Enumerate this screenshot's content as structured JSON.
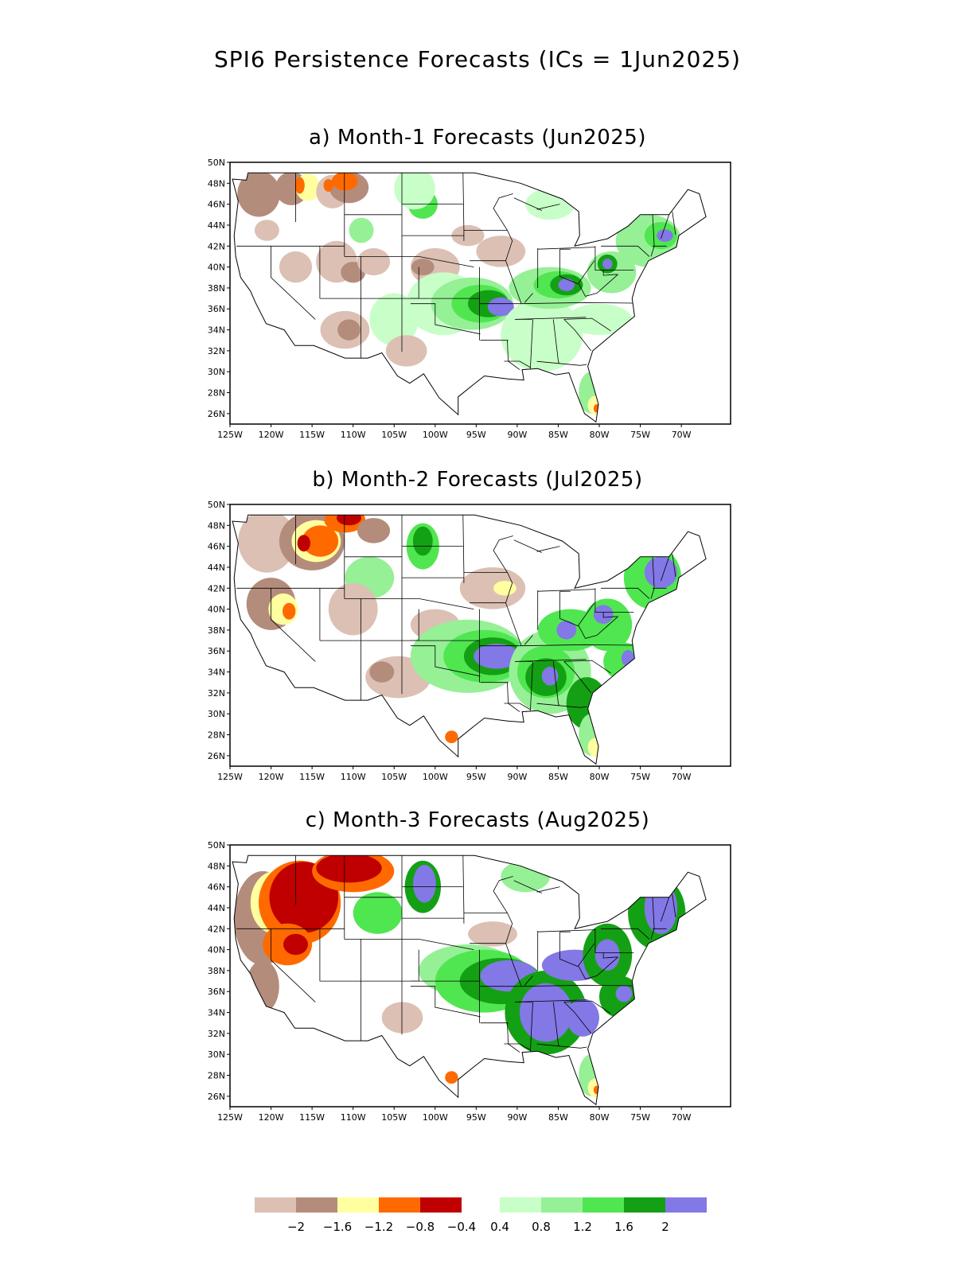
{
  "title": "SPI6 Persistence Forecasts (ICs = 1Jun2025)",
  "map": {
    "lon_range": [
      -125,
      -64
    ],
    "lat_range": [
      25,
      50
    ],
    "lat_ticks": [
      {
        "value": 26,
        "label": "26N"
      },
      {
        "value": 28,
        "label": "28N"
      },
      {
        "value": 30,
        "label": "30N"
      },
      {
        "value": 32,
        "label": "32N"
      },
      {
        "value": 34,
        "label": "34N"
      },
      {
        "value": 36,
        "label": "36N"
      },
      {
        "value": 38,
        "label": "38N"
      },
      {
        "value": 40,
        "label": "40N"
      },
      {
        "value": 42,
        "label": "42N"
      },
      {
        "value": 44,
        "label": "44N"
      },
      {
        "value": 46,
        "label": "46N"
      },
      {
        "value": 48,
        "label": "48N"
      },
      {
        "value": 50,
        "label": "50N"
      }
    ],
    "lon_ticks": [
      {
        "value": -125,
        "label": "125W"
      },
      {
        "value": -120,
        "label": "120W"
      },
      {
        "value": -115,
        "label": "115W"
      },
      {
        "value": -110,
        "label": "110W"
      },
      {
        "value": -105,
        "label": "105W"
      },
      {
        "value": -100,
        "label": "100W"
      },
      {
        "value": -95,
        "label": "95W"
      },
      {
        "value": -90,
        "label": "90W"
      },
      {
        "value": -85,
        "label": "85W"
      },
      {
        "value": -80,
        "label": "80W"
      },
      {
        "value": -75,
        "label": "75W"
      },
      {
        "value": -70,
        "label": "70W"
      }
    ]
  },
  "colors": {
    "le_m2": "#c00000",
    "m2_m16": "#ff6a00",
    "m16_m12": "#ffffa0",
    "m12_m08": "#b48c7c",
    "m08_m04": "#dcc0b4",
    "p04_p08": "#c8ffc8",
    "p08_p12": "#96f096",
    "p12_p16": "#50e650",
    "p16_p2": "#14a014",
    "ge_p2": "#8278e6"
  },
  "panels": [
    {
      "title": "a) Month-1 Forecasts (Jun2025)",
      "blobs": [
        {
          "lon": -121.5,
          "lat": 47,
          "rx": 2.6,
          "ry": 2.2,
          "level": "m12_m08"
        },
        {
          "lon": -117.5,
          "lat": 47.5,
          "rx": 2,
          "ry": 1.6,
          "level": "m12_m08"
        },
        {
          "lon": -115.5,
          "lat": 47.6,
          "rx": 1.5,
          "ry": 1.3,
          "level": "m16_m12"
        },
        {
          "lon": -112.5,
          "lat": 47.2,
          "rx": 2,
          "ry": 1.6,
          "level": "m08_m04"
        },
        {
          "lon": -110.5,
          "lat": 47.6,
          "rx": 2.4,
          "ry": 1.5,
          "level": "m12_m08"
        },
        {
          "lon": -111,
          "lat": 48.2,
          "rx": 1.6,
          "ry": 0.9,
          "level": "m2_m16"
        },
        {
          "lon": -113,
          "lat": 47.8,
          "rx": 0.6,
          "ry": 0.6,
          "level": "m2_m16"
        },
        {
          "lon": -116.5,
          "lat": 47.8,
          "rx": 0.6,
          "ry": 0.8,
          "level": "m2_m16"
        },
        {
          "lon": -109,
          "lat": 43.5,
          "rx": 1.5,
          "ry": 1.2,
          "level": "p08_p12"
        },
        {
          "lon": -101.5,
          "lat": 46,
          "rx": 1.8,
          "ry": 1.4,
          "level": "p12_p16"
        },
        {
          "lon": -102.5,
          "lat": 47.5,
          "rx": 2.5,
          "ry": 2,
          "level": "p04_p08"
        },
        {
          "lon": -117,
          "lat": 40,
          "rx": 2,
          "ry": 1.5,
          "level": "m08_m04"
        },
        {
          "lon": -112,
          "lat": 40.5,
          "rx": 2.5,
          "ry": 2,
          "level": "m08_m04"
        },
        {
          "lon": -110,
          "lat": 39.5,
          "rx": 1.5,
          "ry": 1,
          "level": "m12_m08"
        },
        {
          "lon": -107.5,
          "lat": 40.5,
          "rx": 2,
          "ry": 1.3,
          "level": "m08_m04"
        },
        {
          "lon": -100,
          "lat": 40,
          "rx": 3,
          "ry": 1.8,
          "level": "m08_m04"
        },
        {
          "lon": -101.5,
          "lat": 40,
          "rx": 1.4,
          "ry": 0.8,
          "level": "m12_m08"
        },
        {
          "lon": -92,
          "lat": 41.5,
          "rx": 3,
          "ry": 1.5,
          "level": "m08_m04"
        },
        {
          "lon": -96,
          "lat": 43,
          "rx": 2,
          "ry": 1,
          "level": "m08_m04"
        },
        {
          "lon": -111,
          "lat": 34,
          "rx": 3,
          "ry": 1.8,
          "level": "m08_m04"
        },
        {
          "lon": -110.5,
          "lat": 34,
          "rx": 1.4,
          "ry": 1,
          "level": "m12_m08"
        },
        {
          "lon": -105,
          "lat": 35,
          "rx": 3,
          "ry": 2.5,
          "level": "p04_p08"
        },
        {
          "lon": -103.5,
          "lat": 32,
          "rx": 2.5,
          "ry": 1.5,
          "level": "m08_m04"
        },
        {
          "lon": -99,
          "lat": 36.5,
          "rx": 4.5,
          "ry": 3,
          "level": "p04_p08"
        },
        {
          "lon": -95.5,
          "lat": 36.5,
          "rx": 5,
          "ry": 2.5,
          "level": "p08_p12"
        },
        {
          "lon": -94.5,
          "lat": 36.5,
          "rx": 3.5,
          "ry": 1.8,
          "level": "p12_p16"
        },
        {
          "lon": -93.5,
          "lat": 36.5,
          "rx": 2.5,
          "ry": 1.3,
          "level": "p16_p2"
        },
        {
          "lon": -92,
          "lat": 36.2,
          "rx": 1.6,
          "ry": 0.9,
          "level": "ge_p2"
        },
        {
          "lon": -87,
          "lat": 33.5,
          "rx": 5,
          "ry": 3.5,
          "level": "p04_p08"
        },
        {
          "lon": -86,
          "lat": 38,
          "rx": 5,
          "ry": 2,
          "level": "p08_p12"
        },
        {
          "lon": -85,
          "lat": 38.3,
          "rx": 3,
          "ry": 1.3,
          "level": "p12_p16"
        },
        {
          "lon": -84,
          "lat": 38.3,
          "rx": 2,
          "ry": 1,
          "level": "p16_p2"
        },
        {
          "lon": -84,
          "lat": 38.3,
          "rx": 1,
          "ry": 0.6,
          "level": "ge_p2"
        },
        {
          "lon": -78.5,
          "lat": 39.5,
          "rx": 3,
          "ry": 2,
          "level": "p08_p12"
        },
        {
          "lon": -79,
          "lat": 40.3,
          "rx": 1.2,
          "ry": 0.9,
          "level": "p16_p2"
        },
        {
          "lon": -79,
          "lat": 40.3,
          "rx": 0.6,
          "ry": 0.5,
          "level": "ge_p2"
        },
        {
          "lon": -74,
          "lat": 42.5,
          "rx": 4,
          "ry": 2.5,
          "level": "p08_p12"
        },
        {
          "lon": -72.5,
          "lat": 43,
          "rx": 2,
          "ry": 1.3,
          "level": "p12_p16"
        },
        {
          "lon": -72,
          "lat": 43,
          "rx": 1,
          "ry": 0.6,
          "level": "ge_p2"
        },
        {
          "lon": -81,
          "lat": 28,
          "rx": 1.5,
          "ry": 2,
          "level": "p08_p12"
        },
        {
          "lon": -80.5,
          "lat": 26.8,
          "rx": 0.9,
          "ry": 0.9,
          "level": "m16_m12"
        },
        {
          "lon": -80.3,
          "lat": 26.5,
          "rx": 0.4,
          "ry": 0.4,
          "level": "m2_m16"
        },
        {
          "lon": -86,
          "lat": 46,
          "rx": 3,
          "ry": 1.5,
          "level": "p04_p08"
        },
        {
          "lon": -80,
          "lat": 35,
          "rx": 4,
          "ry": 1.5,
          "level": "p04_p08"
        },
        {
          "lon": -120.5,
          "lat": 43.5,
          "rx": 1.5,
          "ry": 1,
          "level": "m08_m04"
        }
      ]
    },
    {
      "title": "b) Month-2 Forecasts (Jul2025)",
      "blobs": [
        {
          "lon": -120.5,
          "lat": 46.5,
          "rx": 3.5,
          "ry": 3,
          "level": "m08_m04"
        },
        {
          "lon": -120,
          "lat": 40.5,
          "rx": 3,
          "ry": 2.5,
          "level": "m12_m08"
        },
        {
          "lon": -118.5,
          "lat": 40,
          "rx": 1.8,
          "ry": 1.5,
          "level": "m16_m12"
        },
        {
          "lon": -117.8,
          "lat": 39.8,
          "rx": 0.8,
          "ry": 0.8,
          "level": "m2_m16"
        },
        {
          "lon": -115,
          "lat": 46.5,
          "rx": 4,
          "ry": 2.8,
          "level": "m12_m08"
        },
        {
          "lon": -114.5,
          "lat": 46.5,
          "rx": 3,
          "ry": 2,
          "level": "m16_m12"
        },
        {
          "lon": -114,
          "lat": 46.5,
          "rx": 2.2,
          "ry": 1.5,
          "level": "m2_m16"
        },
        {
          "lon": -116,
          "lat": 46.3,
          "rx": 0.8,
          "ry": 0.8,
          "level": "le_m2"
        },
        {
          "lon": -111,
          "lat": 48.5,
          "rx": 2.5,
          "ry": 1.2,
          "level": "m2_m16"
        },
        {
          "lon": -110.5,
          "lat": 48.7,
          "rx": 1.5,
          "ry": 0.7,
          "level": "le_m2"
        },
        {
          "lon": -107.5,
          "lat": 47.5,
          "rx": 2,
          "ry": 1.2,
          "level": "m12_m08"
        },
        {
          "lon": -101.5,
          "lat": 46,
          "rx": 2,
          "ry": 2.2,
          "level": "p12_p16"
        },
        {
          "lon": -101.5,
          "lat": 46.5,
          "rx": 1.2,
          "ry": 1.4,
          "level": "p16_p2"
        },
        {
          "lon": -108,
          "lat": 43,
          "rx": 3,
          "ry": 2,
          "level": "p08_p12"
        },
        {
          "lon": -110,
          "lat": 40,
          "rx": 3,
          "ry": 2.5,
          "level": "m08_m04"
        },
        {
          "lon": -104.5,
          "lat": 33.5,
          "rx": 4,
          "ry": 2,
          "level": "m08_m04"
        },
        {
          "lon": -106.5,
          "lat": 34,
          "rx": 1.5,
          "ry": 1,
          "level": "m12_m08"
        },
        {
          "lon": -100,
          "lat": 38.5,
          "rx": 3,
          "ry": 1.5,
          "level": "m08_m04"
        },
        {
          "lon": -93,
          "lat": 42,
          "rx": 4,
          "ry": 2,
          "level": "m08_m04"
        },
        {
          "lon": -91.5,
          "lat": 42,
          "rx": 1.4,
          "ry": 0.7,
          "level": "m16_m12"
        },
        {
          "lon": -96,
          "lat": 35.5,
          "rx": 7,
          "ry": 3.5,
          "level": "p08_p12"
        },
        {
          "lon": -94,
          "lat": 35.5,
          "rx": 5,
          "ry": 2.5,
          "level": "p12_p16"
        },
        {
          "lon": -93,
          "lat": 35.5,
          "rx": 3.5,
          "ry": 1.8,
          "level": "p16_p2"
        },
        {
          "lon": -92.5,
          "lat": 35.5,
          "rx": 2.8,
          "ry": 1.2,
          "level": "ge_p2"
        },
        {
          "lon": -86,
          "lat": 34,
          "rx": 5,
          "ry": 4,
          "level": "p08_p12"
        },
        {
          "lon": -86.5,
          "lat": 34,
          "rx": 3.5,
          "ry": 2.5,
          "level": "p12_p16"
        },
        {
          "lon": -86.5,
          "lat": 33.5,
          "rx": 2.5,
          "ry": 1.8,
          "level": "p16_p2"
        },
        {
          "lon": -86,
          "lat": 33.6,
          "rx": 1,
          "ry": 0.9,
          "level": "ge_p2"
        },
        {
          "lon": -83.5,
          "lat": 38,
          "rx": 4,
          "ry": 2,
          "level": "p12_p16"
        },
        {
          "lon": -84,
          "lat": 38,
          "rx": 1.2,
          "ry": 0.9,
          "level": "ge_p2"
        },
        {
          "lon": -79,
          "lat": 38.5,
          "rx": 3,
          "ry": 2.5,
          "level": "p12_p16"
        },
        {
          "lon": -79.5,
          "lat": 39.5,
          "rx": 1.2,
          "ry": 0.9,
          "level": "ge_p2"
        },
        {
          "lon": -73.5,
          "lat": 43,
          "rx": 3.5,
          "ry": 3,
          "level": "p12_p16"
        },
        {
          "lon": -72.5,
          "lat": 43.5,
          "rx": 2,
          "ry": 1.5,
          "level": "ge_p2"
        },
        {
          "lon": -77,
          "lat": 35,
          "rx": 2.5,
          "ry": 1.8,
          "level": "p12_p16"
        },
        {
          "lon": -76.5,
          "lat": 35.3,
          "rx": 0.8,
          "ry": 0.8,
          "level": "ge_p2"
        },
        {
          "lon": -81.5,
          "lat": 31,
          "rx": 2.5,
          "ry": 2.5,
          "level": "p16_p2"
        },
        {
          "lon": -81,
          "lat": 28,
          "rx": 1.5,
          "ry": 2,
          "level": "p08_p12"
        },
        {
          "lon": -80.5,
          "lat": 26.8,
          "rx": 0.9,
          "ry": 0.9,
          "level": "m16_m12"
        },
        {
          "lon": -98,
          "lat": 27.8,
          "rx": 0.8,
          "ry": 0.6,
          "level": "m2_m16"
        }
      ]
    },
    {
      "title": "c) Month-3 Forecasts (Aug2025)",
      "blobs": [
        {
          "lon": -121,
          "lat": 43,
          "rx": 3.5,
          "ry": 4.5,
          "level": "m12_m08"
        },
        {
          "lon": -119.5,
          "lat": 44.5,
          "rx": 3,
          "ry": 3,
          "level": "m16_m12"
        },
        {
          "lon": -116.5,
          "lat": 44.5,
          "rx": 5,
          "ry": 4,
          "level": "m2_m16"
        },
        {
          "lon": -116,
          "lat": 45,
          "rx": 4.2,
          "ry": 3.4,
          "level": "le_m2"
        },
        {
          "lon": -110,
          "lat": 47.5,
          "rx": 5,
          "ry": 2,
          "level": "m2_m16"
        },
        {
          "lon": -110.5,
          "lat": 47.8,
          "rx": 4,
          "ry": 1.4,
          "level": "le_m2"
        },
        {
          "lon": -118,
          "lat": 40.5,
          "rx": 3,
          "ry": 2,
          "level": "m2_m16"
        },
        {
          "lon": -117,
          "lat": 40.5,
          "rx": 1.5,
          "ry": 1,
          "level": "le_m2"
        },
        {
          "lon": -121,
          "lat": 36.5,
          "rx": 2,
          "ry": 2.5,
          "level": "m12_m08"
        },
        {
          "lon": -101.5,
          "lat": 46,
          "rx": 2.2,
          "ry": 2.5,
          "level": "p16_p2"
        },
        {
          "lon": -101.3,
          "lat": 46.3,
          "rx": 1.4,
          "ry": 1.8,
          "level": "ge_p2"
        },
        {
          "lon": -107,
          "lat": 43.5,
          "rx": 3,
          "ry": 2,
          "level": "p12_p16"
        },
        {
          "lon": -104,
          "lat": 33.5,
          "rx": 2.5,
          "ry": 1.5,
          "level": "m08_m04"
        },
        {
          "lon": -96,
          "lat": 38,
          "rx": 6,
          "ry": 2.5,
          "level": "p08_p12"
        },
        {
          "lon": -94,
          "lat": 37,
          "rx": 6,
          "ry": 3,
          "level": "p12_p16"
        },
        {
          "lon": -92,
          "lat": 37,
          "rx": 5,
          "ry": 2.2,
          "level": "p16_p2"
        },
        {
          "lon": -91,
          "lat": 37.5,
          "rx": 3.5,
          "ry": 1.5,
          "level": "ge_p2"
        },
        {
          "lon": -86.5,
          "lat": 34,
          "rx": 5,
          "ry": 4,
          "level": "p16_p2"
        },
        {
          "lon": -86.5,
          "lat": 34,
          "rx": 3.2,
          "ry": 2.8,
          "level": "ge_p2"
        },
        {
          "lon": -83,
          "lat": 38.5,
          "rx": 4,
          "ry": 1.5,
          "level": "ge_p2"
        },
        {
          "lon": -82,
          "lat": 33.5,
          "rx": 2,
          "ry": 1.8,
          "level": "ge_p2"
        },
        {
          "lon": -79,
          "lat": 39.5,
          "rx": 3,
          "ry": 3,
          "level": "p16_p2"
        },
        {
          "lon": -79,
          "lat": 39.5,
          "rx": 1.5,
          "ry": 1.5,
          "level": "ge_p2"
        },
        {
          "lon": -73,
          "lat": 43.5,
          "rx": 3.5,
          "ry": 3.5,
          "level": "p16_p2"
        },
        {
          "lon": -72.5,
          "lat": 44,
          "rx": 2,
          "ry": 2.5,
          "level": "ge_p2"
        },
        {
          "lon": -77.5,
          "lat": 35.5,
          "rx": 2.5,
          "ry": 2,
          "level": "p16_p2"
        },
        {
          "lon": -77,
          "lat": 35.8,
          "rx": 1,
          "ry": 0.8,
          "level": "ge_p2"
        },
        {
          "lon": -81,
          "lat": 28,
          "rx": 1.5,
          "ry": 2,
          "level": "p08_p12"
        },
        {
          "lon": -80.5,
          "lat": 26.8,
          "rx": 0.9,
          "ry": 0.9,
          "level": "m16_m12"
        },
        {
          "lon": -80.3,
          "lat": 26.6,
          "rx": 0.4,
          "ry": 0.4,
          "level": "m2_m16"
        },
        {
          "lon": -98,
          "lat": 27.8,
          "rx": 0.8,
          "ry": 0.6,
          "level": "m2_m16"
        },
        {
          "lon": -93,
          "lat": 41.5,
          "rx": 3,
          "ry": 1.2,
          "level": "m08_m04"
        },
        {
          "lon": -89,
          "lat": 47,
          "rx": 3,
          "ry": 1.5,
          "level": "p08_p12"
        }
      ]
    }
  ],
  "colorbar": {
    "labels": [
      "-2",
      "-1.6",
      "-1.2",
      "-0.8",
      "-0.4",
      "0.4",
      "0.8",
      "1.2",
      "1.6",
      "2"
    ]
  }
}
